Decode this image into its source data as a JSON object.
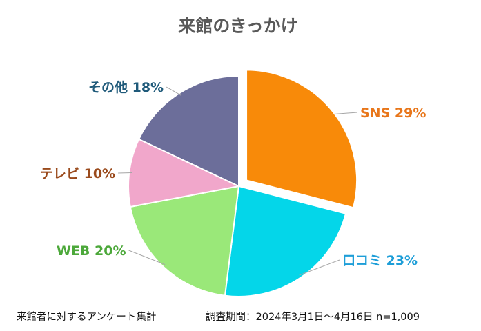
{
  "chart_data": {
    "type": "pie",
    "title": "来館のきっかけ",
    "slices": [
      {
        "name": "SNS",
        "percent": 29,
        "display": "SNS 29%",
        "color": "#F88A09",
        "label_color": "#E8761A",
        "exploded": true
      },
      {
        "name": "口コミ",
        "percent": 23,
        "display": "口コミ 23%",
        "color": "#04D6E9",
        "label_color": "#1D9ED8",
        "exploded": false
      },
      {
        "name": "WEB",
        "percent": 20,
        "display": "WEB 20%",
        "color": "#9AE879",
        "label_color": "#4CA83A",
        "exploded": false
      },
      {
        "name": "テレビ",
        "percent": 10,
        "display": "テレビ 10%",
        "color": "#F1A7CB",
        "label_color": "#9A4A1C",
        "exploded": false
      },
      {
        "name": "その他",
        "percent": 18,
        "display": "その他 18%",
        "color": "#6C6E9A",
        "label_color": "#1F5A7A",
        "exploded": false
      }
    ]
  },
  "footer": {
    "left": "来館者に対するアンケート集計",
    "right": "調査期間：2024年3月1日～4月16日 n=1,009"
  }
}
